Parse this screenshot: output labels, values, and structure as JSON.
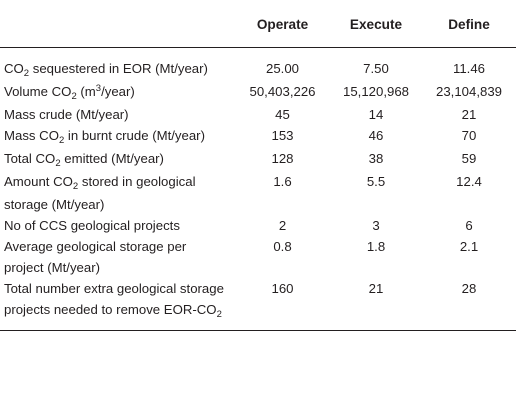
{
  "columns": [
    "",
    "Operate",
    "Execute",
    "Define"
  ],
  "rows": [
    {
      "label": [
        {
          "t": "CO"
        },
        {
          "sub": "2"
        },
        {
          "t": " sequestered in EOR (Mt/year)"
        }
      ],
      "values": [
        "25.00",
        "7.50",
        "11.46"
      ]
    },
    {
      "label": [
        {
          "t": "Volume CO"
        },
        {
          "sub": "2"
        },
        {
          "t": " (m"
        },
        {
          "sup": "3"
        },
        {
          "t": "/year)"
        }
      ],
      "values": [
        "50,403,226",
        "15,120,968",
        "23,104,839"
      ]
    },
    {
      "label": [
        {
          "t": "Mass crude (Mt/year)"
        }
      ],
      "values": [
        "45",
        "14",
        "21"
      ]
    },
    {
      "label": [
        {
          "t": "Mass CO"
        },
        {
          "sub": "2"
        },
        {
          "t": " in burnt crude (Mt/year)"
        }
      ],
      "values": [
        "153",
        "46",
        "70"
      ]
    },
    {
      "label": [
        {
          "t": "Total CO"
        },
        {
          "sub": "2"
        },
        {
          "t": " emitted (Mt/year)"
        }
      ],
      "values": [
        "128",
        "38",
        "59"
      ]
    },
    {
      "label": [
        {
          "t": "Amount CO"
        },
        {
          "sub": "2"
        },
        {
          "t": " stored in geological storage (Mt/year)"
        }
      ],
      "values": [
        "1.6",
        "5.5",
        "12.4"
      ]
    },
    {
      "label": [
        {
          "t": "No of CCS geological projects"
        }
      ],
      "values": [
        "2",
        "3",
        "6"
      ]
    },
    {
      "label": [
        {
          "t": "Average geological storage per project (Mt/year)"
        }
      ],
      "values": [
        "0.8",
        "1.8",
        "2.1"
      ]
    },
    {
      "label": [
        {
          "t": "Total number extra geological storage projects needed to remove EOR-CO"
        },
        {
          "sub": "2"
        }
      ],
      "values": [
        "160",
        "21",
        "28"
      ]
    }
  ]
}
